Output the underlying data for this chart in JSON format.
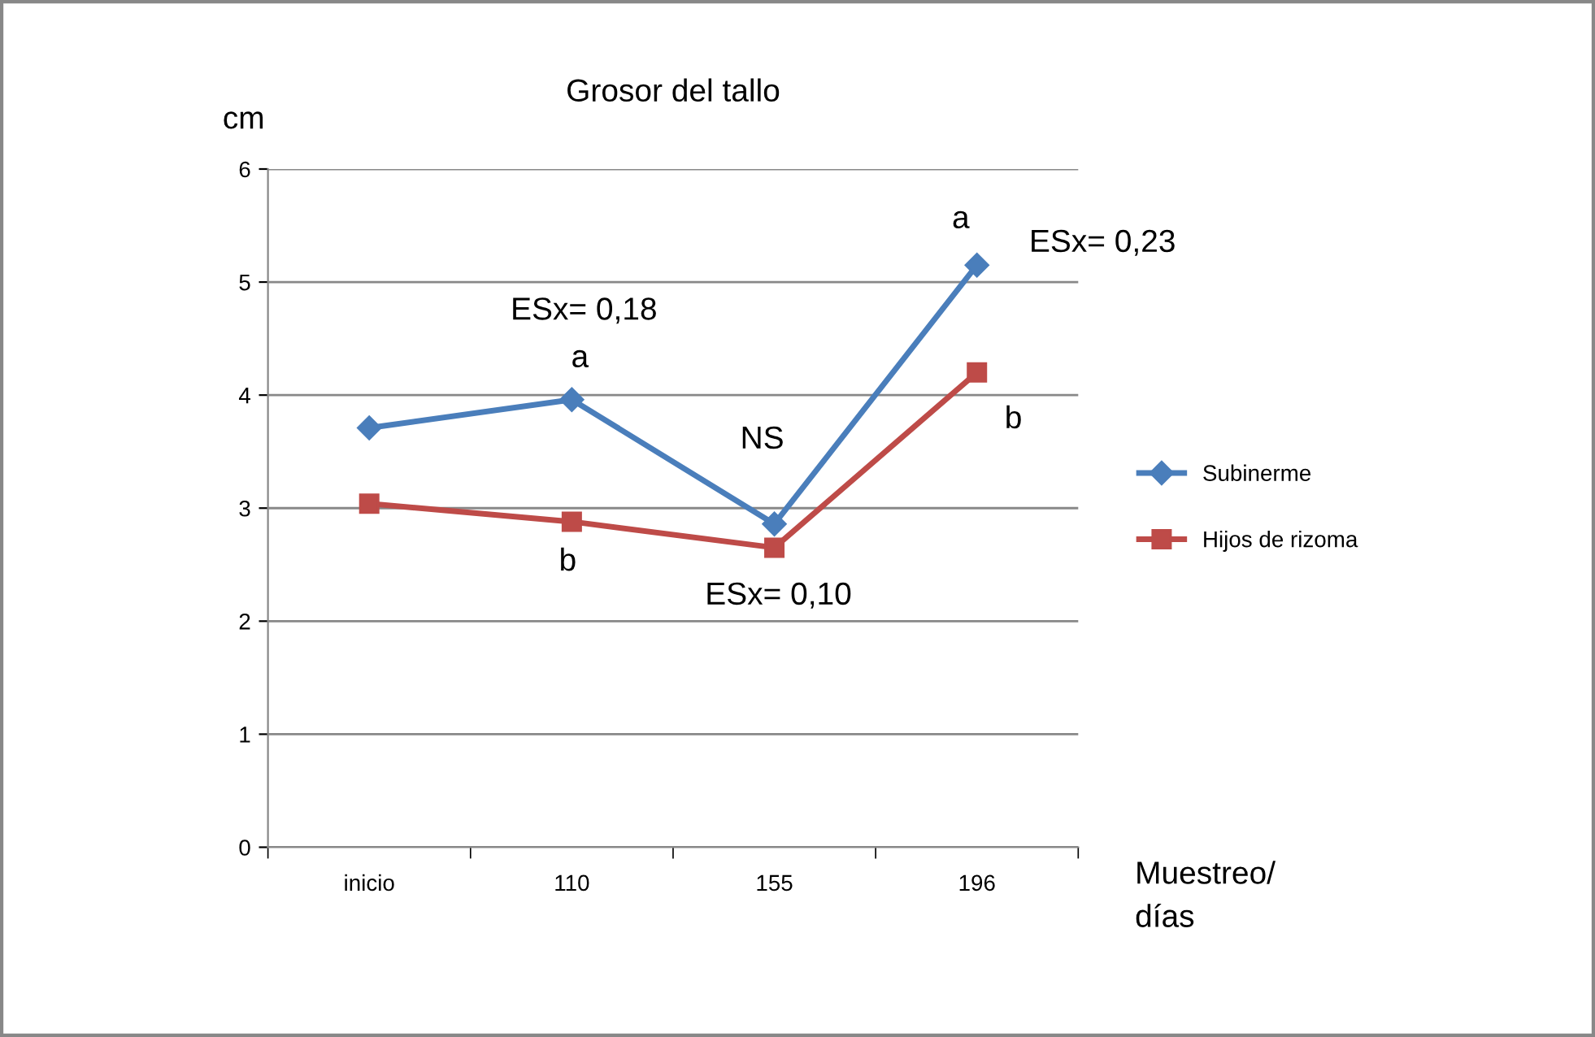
{
  "chart_data": {
    "type": "line",
    "title": "Grosor del tallo",
    "ylabel": "cm",
    "xlabel": "Muestreo/\ndías",
    "categories": [
      "inicio",
      "110",
      "155",
      "196"
    ],
    "series": [
      {
        "name": "Subinerme",
        "color": "#4a7ebb",
        "marker": "diamond",
        "values": [
          3.71,
          3.96,
          2.86,
          5.15
        ]
      },
      {
        "name": "Hijos de rizoma",
        "color": "#be4b48",
        "marker": "square",
        "values": [
          3.04,
          2.88,
          2.65,
          4.2
        ]
      }
    ],
    "annotations": [
      "ESx= 0,18",
      "a",
      "b",
      "NS",
      "ESx= 0,10",
      "a",
      "ESx= 0,23",
      "b"
    ],
    "ylim": [
      0,
      6
    ],
    "yticks": [
      0,
      1,
      2,
      3,
      4,
      5,
      6
    ],
    "grid": "y",
    "legend": "right",
    "line_style": "solid"
  }
}
